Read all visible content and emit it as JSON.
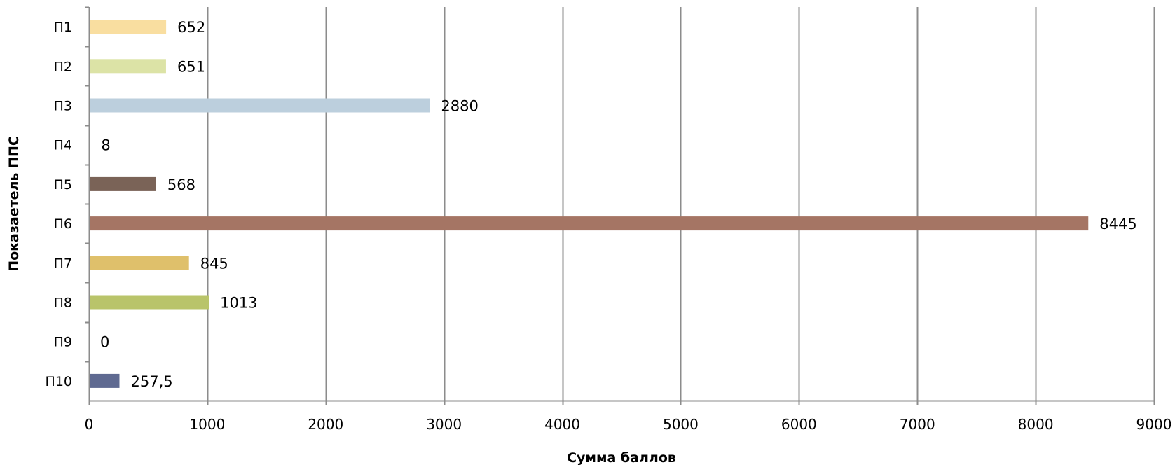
{
  "chart_data": {
    "type": "bar",
    "orientation": "horizontal",
    "title": "",
    "xlabel": "Сумма баллов",
    "ylabel": "Показаетель ППС",
    "xlim": [
      0,
      9000
    ],
    "xticks": [
      0,
      1000,
      2000,
      3000,
      4000,
      5000,
      6000,
      7000,
      8000,
      9000
    ],
    "grid": "vertical",
    "legend": "none",
    "categories": [
      "П1",
      "П2",
      "П3",
      "П4",
      "П5",
      "П6",
      "П7",
      "П8",
      "П9",
      "П10"
    ],
    "values": [
      652,
      651,
      2880,
      8,
      568,
      8445,
      845,
      1013,
      0,
      257.5
    ],
    "data_labels": [
      "652",
      "651",
      "2880",
      "8",
      "568",
      "8445",
      "845",
      "1013",
      "0",
      "257,5"
    ],
    "colors": [
      "#f9dea0",
      "#dce3a6",
      "#bccfdd",
      "#cfcfd8",
      "#7a6357",
      "#a57564",
      "#dfc06b",
      "#b9c46a",
      "#d8d8d8",
      "#5f6a91"
    ]
  }
}
